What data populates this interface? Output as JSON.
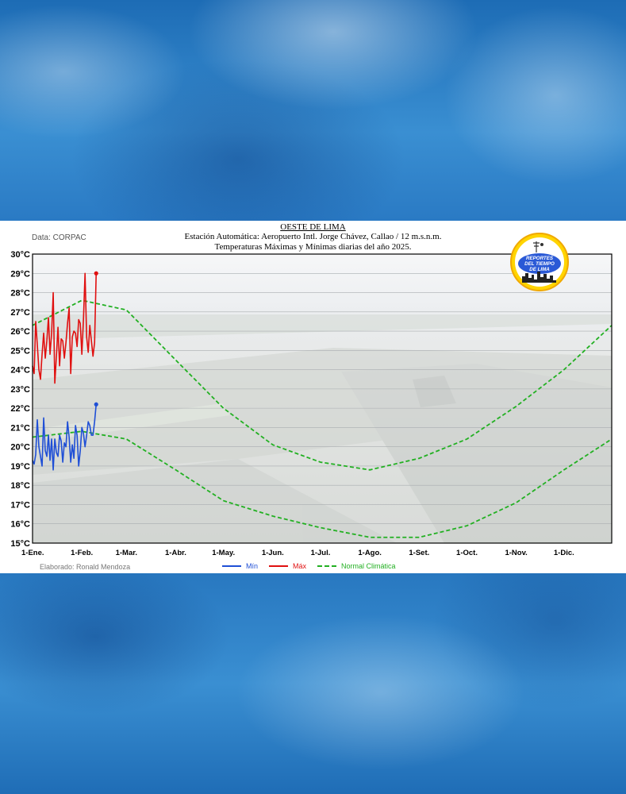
{
  "chart_data": {
    "type": "line",
    "title": "OESTE DE LIMA",
    "subtitle_1": "Estación Automática: Aeropuerto Intl. Jorge Chávez, Callao / 12 m.s.n.m.",
    "subtitle_2": "Temperaturas Máximas y Mínimas diarias del año 2025.",
    "source": "Data: CORPAC",
    "credit": "Elaborado: Ronald Mendoza",
    "ylim": [
      15,
      30
    ],
    "y_ticks": [
      "30°C",
      "29°C",
      "28°C",
      "27°C",
      "26°C",
      "25°C",
      "24°C",
      "23°C",
      "22°C",
      "21°C",
      "20°C",
      "19°C",
      "18°C",
      "17°C",
      "16°C",
      "15°C"
    ],
    "x_ticks": [
      "1-Ene.",
      "1-Feb.",
      "1-Mar.",
      "1-Abr.",
      "1-May.",
      "1-Jun.",
      "1-Jul.",
      "1-Ago.",
      "1-Set.",
      "1-Oct.",
      "1-Nov.",
      "1-Dic."
    ],
    "x_days": [
      1,
      32,
      60,
      91,
      121,
      152,
      182,
      213,
      244,
      274,
      305,
      335
    ],
    "x_max_day": 365,
    "grid": true,
    "legend_position": "bottom-center",
    "series": [
      {
        "name": "Mín",
        "color": "#1f4fd6",
        "x": [
          1,
          2,
          3,
          4,
          5,
          6,
          7,
          8,
          9,
          10,
          11,
          12,
          13,
          14,
          15,
          16,
          17,
          18,
          19,
          20,
          21,
          22,
          23,
          24,
          25,
          26,
          27,
          28,
          29,
          30,
          31,
          32,
          33,
          34,
          35,
          36,
          37,
          38,
          39,
          40,
          41
        ],
        "values": [
          19.3,
          19.1,
          19.6,
          21.4,
          20.0,
          19.5,
          19.0,
          21.5,
          19.8,
          19.5,
          20.6,
          19.3,
          20.4,
          18.8,
          20.4,
          19.7,
          19.5,
          20.6,
          20.3,
          19.2,
          20.2,
          20.0,
          21.3,
          20.5,
          19.2,
          20.1,
          19.4,
          21.1,
          20.6,
          19.0,
          19.8,
          21.0,
          20.7,
          20.0,
          20.6,
          21.3,
          21.1,
          20.6,
          20.6,
          21.3,
          22.2
        ]
      },
      {
        "name": "Máx",
        "color": "#e01010",
        "x": [
          1,
          2,
          3,
          4,
          5,
          6,
          7,
          8,
          9,
          10,
          11,
          12,
          13,
          14,
          15,
          16,
          17,
          18,
          19,
          20,
          21,
          22,
          23,
          24,
          25,
          26,
          27,
          28,
          29,
          30,
          31,
          32,
          33,
          34,
          35,
          36,
          37,
          38,
          39,
          40,
          41
        ],
        "values": [
          24.2,
          23.8,
          26.5,
          25.3,
          24.0,
          23.5,
          24.8,
          25.9,
          24.6,
          25.5,
          26.7,
          24.8,
          25.9,
          28.0,
          23.3,
          24.7,
          26.2,
          24.2,
          25.6,
          25.5,
          24.6,
          25.4,
          26.4,
          27.2,
          23.8,
          25.7,
          26.0,
          25.9,
          25.2,
          26.6,
          26.4,
          24.8,
          26.6,
          29.0,
          25.7,
          24.9,
          26.3,
          25.5,
          24.7,
          25.4,
          29.0
        ]
      },
      {
        "name": "Normal Climática",
        "color": "#22b022",
        "style": "dashed",
        "lines": [
          {
            "x": [
              1,
              32,
              60,
              91,
              121,
              152,
              182,
              213,
              244,
              274,
              305,
              335,
              365
            ],
            "values": [
              26.3,
              27.6,
              27.1,
              24.5,
              22.0,
              20.1,
              19.2,
              18.8,
              19.4,
              20.4,
              22.1,
              24.0,
              26.3
            ]
          },
          {
            "x": [
              1,
              32,
              60,
              91,
              121,
              152,
              182,
              213,
              244,
              274,
              305,
              335,
              365
            ],
            "values": [
              20.5,
              20.8,
              20.4,
              18.8,
              17.2,
              16.4,
              15.8,
              15.3,
              15.3,
              15.9,
              17.1,
              18.8,
              20.4
            ]
          }
        ]
      }
    ]
  },
  "logo": {
    "line1": "REPORTES",
    "line2": "DEL TIEMPO",
    "line3": "DE LIMA"
  }
}
